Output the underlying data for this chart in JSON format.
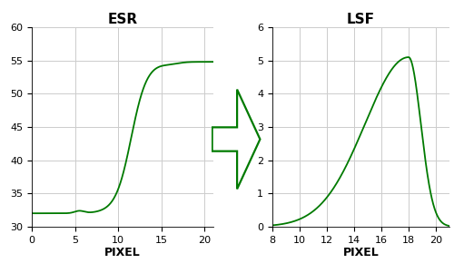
{
  "esr_title": "ESR",
  "lsf_title": "LSF",
  "xlabel": "PIXEL",
  "esr_xlim": [
    0,
    21
  ],
  "esr_ylim": [
    30,
    60
  ],
  "esr_xticks": [
    0,
    5,
    10,
    15,
    20
  ],
  "esr_yticks": [
    30,
    35,
    40,
    45,
    50,
    55,
    60
  ],
  "lsf_xlim": [
    8,
    21
  ],
  "lsf_ylim": [
    0,
    6
  ],
  "lsf_xticks": [
    8,
    10,
    12,
    14,
    16,
    18,
    20
  ],
  "lsf_yticks": [
    0,
    1,
    2,
    3,
    4,
    5,
    6
  ],
  "line_color": "#007a00",
  "arrow_color": "#007a00",
  "grid_color": "#cccccc",
  "bg_color": "#ffffff",
  "title_fontsize": 11,
  "label_fontsize": 9,
  "tick_fontsize": 8
}
